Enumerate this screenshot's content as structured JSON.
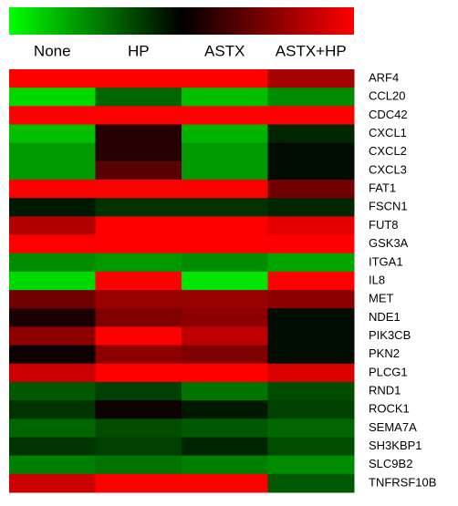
{
  "chart_data": {
    "type": "heatmap",
    "columns": [
      "None",
      "HP",
      "ASTX",
      "ASTX+HP"
    ],
    "rows": [
      "ARF4",
      "CCL20",
      "CDC42",
      "CXCL1",
      "CXCL2",
      "CXCL3",
      "FAT1",
      "FSCN1",
      "FUT8",
      "GSK3A",
      "ITGA1",
      "IL8",
      "MET",
      "NDE1",
      "PIK3CB",
      "PKN2",
      "PLCG1",
      "RND1",
      "ROCK1",
      "SEMA7A",
      "SH3KBP1",
      "SLC9B2",
      "TNFRSF10B"
    ],
    "values": [
      [
        1,
        1,
        1,
        0.65
      ],
      [
        -0.85,
        -0.4,
        -0.75,
        -0.55
      ],
      [
        1,
        1,
        1,
        1
      ],
      [
        -0.75,
        0.15,
        -0.7,
        -0.15
      ],
      [
        -0.6,
        0.15,
        -0.6,
        -0.05
      ],
      [
        -0.6,
        0.35,
        -0.6,
        -0.05
      ],
      [
        1,
        1,
        1,
        0.45
      ],
      [
        -0.1,
        -0.2,
        -0.2,
        -0.15
      ],
      [
        0.7,
        1,
        1,
        0.9
      ],
      [
        1,
        1,
        1,
        1
      ],
      [
        -0.55,
        -0.6,
        -0.55,
        -0.65
      ],
      [
        -0.85,
        1,
        -0.9,
        1
      ],
      [
        0.45,
        0.6,
        0.6,
        0.55
      ],
      [
        0.1,
        0.5,
        0.55,
        -0.05
      ],
      [
        0.55,
        1,
        0.75,
        -0.05
      ],
      [
        0.05,
        0.55,
        0.5,
        -0.05
      ],
      [
        0.8,
        1,
        1,
        0.85
      ],
      [
        -0.35,
        -0.25,
        -0.45,
        -0.3
      ],
      [
        -0.2,
        0.05,
        -0.1,
        -0.25
      ],
      [
        -0.4,
        -0.3,
        -0.35,
        -0.4
      ],
      [
        -0.2,
        -0.25,
        -0.15,
        -0.3
      ],
      [
        -0.5,
        -0.45,
        -0.5,
        -0.55
      ],
      [
        0.8,
        1,
        1,
        -0.35
      ]
    ],
    "zlim": [
      -1,
      1
    ],
    "colors": [
      "#00ff00",
      "#000000",
      "#ff0000"
    ]
  }
}
